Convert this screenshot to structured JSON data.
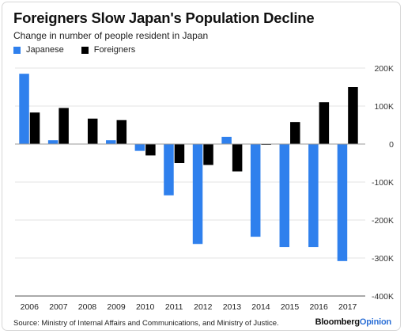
{
  "header": {
    "title": "Foreigners Slow Japan's Population Decline",
    "subtitle": "Change in number of people resident in Japan"
  },
  "footer": {
    "source": "Source: Ministry of Internal Affairs and Communications, and Ministry of Justice.",
    "brand_part1": "Bloomberg",
    "brand_part2": "Opinion"
  },
  "colors": {
    "japanese": "#2f80ed",
    "foreigners": "#000000",
    "grid": "#e3e3e3",
    "zero_line": "#9a9a9a"
  },
  "chart_data": {
    "type": "bar",
    "title": "Foreigners Slow Japan's Population Decline",
    "subtitle": "Change in number of people resident in Japan",
    "categories": [
      "2006",
      "2007",
      "2008",
      "2009",
      "2010",
      "2011",
      "2012",
      "2013",
      "2014",
      "2015",
      "2016",
      "2017"
    ],
    "series": [
      {
        "name": "Japanese",
        "values": [
          185000,
          10000,
          1000,
          10000,
          -18000,
          -135000,
          -263000,
          19000,
          -244000,
          -271000,
          -271000,
          -308000
        ]
      },
      {
        "name": "Foreigners",
        "values": [
          83000,
          95000,
          67000,
          63000,
          -30000,
          -50000,
          -55000,
          -72000,
          -2000,
          58000,
          110000,
          150000
        ]
      }
    ],
    "ylim": [
      -400000,
      200000
    ],
    "yticks": [
      200000,
      100000,
      0,
      -100000,
      -200000,
      -300000,
      -400000
    ],
    "ytick_labels": [
      "200K",
      "100K",
      "0",
      "-100K",
      "-200K",
      "-300K",
      "-400K"
    ],
    "xlabel": "",
    "ylabel": "",
    "grid": true,
    "legend": "top-left",
    "y_axis_position": "right"
  }
}
